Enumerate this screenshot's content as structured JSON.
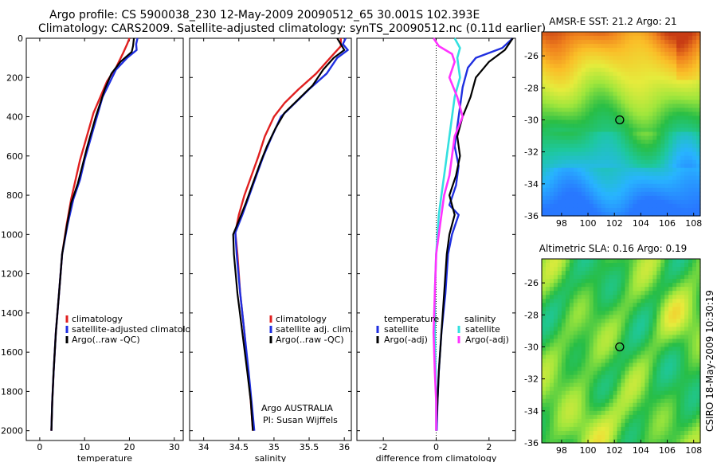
{
  "header": {
    "line1": "Argo profile: CS 5900038_230 12-May-2009 20090512_65 30.001S 102.393E",
    "line2": "Climatology: CARS2009. Satellite-adjusted climatology: synTS_20090512.nc (0.11d earlier)"
  },
  "footer": {
    "side_label": "CSIRO 18-May-2009 10:30:19",
    "argo_label_1": "Argo AUSTRALIA",
    "argo_label_2": "PI: Susan Wijffels"
  },
  "colors": {
    "climatology": "#e02020",
    "satellite": "#1f2fe0",
    "argo": "#000000",
    "sal_satellite": "#33e0e0",
    "sal_argo": "#ff33ff"
  },
  "chart_data": [
    {
      "type": "line",
      "id": "temperature",
      "xlabel": "temperature",
      "xlim": [
        -3,
        32
      ],
      "ylim": [
        2050,
        0
      ],
      "xticks": [
        0,
        10,
        20,
        30
      ],
      "yticks": [
        0,
        200,
        400,
        600,
        800,
        1000,
        1200,
        1400,
        1600,
        1800,
        2000
      ],
      "legend": [
        "climatology",
        "satellite-adjusted climatolo",
        "Argo(..raw -QC)"
      ],
      "series": [
        {
          "name": "climatology",
          "color_key": "climatology",
          "points": [
            [
              20,
              0
            ],
            [
              19.5,
              30
            ],
            [
              18.5,
              80
            ],
            [
              17,
              150
            ],
            [
              15,
              220
            ],
            [
              13.5,
              300
            ],
            [
              12,
              380
            ],
            [
              11,
              460
            ],
            [
              10,
              540
            ],
            [
              9,
              620
            ],
            [
              8,
              720
            ],
            [
              7,
              820
            ],
            [
              6,
              950
            ],
            [
              5,
              1100
            ],
            [
              4.3,
              1300
            ],
            [
              3.6,
              1500
            ],
            [
              3.1,
              1700
            ],
            [
              2.8,
              1850
            ],
            [
              2.6,
              2000
            ]
          ]
        },
        {
          "name": "satellite-adjusted climatolo",
          "color_key": "satellite",
          "points": [
            [
              21.8,
              0
            ],
            [
              21.5,
              30
            ],
            [
              21.6,
              60
            ],
            [
              19.5,
              100
            ],
            [
              17,
              160
            ],
            [
              15.5,
              230
            ],
            [
              14,
              300
            ],
            [
              13,
              380
            ],
            [
              12,
              460
            ],
            [
              11,
              540
            ],
            [
              10,
              620
            ],
            [
              9,
              720
            ],
            [
              7.5,
              820
            ],
            [
              6.2,
              950
            ],
            [
              5,
              1100
            ],
            [
              4.3,
              1300
            ],
            [
              3.6,
              1500
            ],
            [
              3.1,
              1700
            ],
            [
              2.8,
              1850
            ],
            [
              2.6,
              2000
            ]
          ]
        },
        {
          "name": "Argo(..raw -QC)",
          "color_key": "argo",
          "points": [
            [
              21,
              0
            ],
            [
              20.8,
              40
            ],
            [
              20.5,
              70
            ],
            [
              18,
              120
            ],
            [
              16,
              180
            ],
            [
              14.5,
              260
            ],
            [
              13.5,
              330
            ],
            [
              12.5,
              400
            ],
            [
              11.5,
              480
            ],
            [
              10.5,
              560
            ],
            [
              9.5,
              650
            ],
            [
              8.5,
              740
            ],
            [
              7,
              840
            ],
            [
              6,
              960
            ],
            [
              5,
              1100
            ],
            [
              4.3,
              1300
            ],
            [
              3.6,
              1500
            ],
            [
              3.1,
              1700
            ],
            [
              2.8,
              1850
            ],
            [
              2.6,
              2000
            ]
          ]
        }
      ]
    },
    {
      "type": "line",
      "id": "salinity",
      "xlabel": "salinity",
      "xlim": [
        33.8,
        36.1
      ],
      "ylim": [
        2050,
        0
      ],
      "xticks": [
        34,
        34.5,
        35,
        35.5,
        36
      ],
      "legend": [
        "climatology",
        "satellite adj. clim.",
        "Argo(..raw -QC)"
      ],
      "series": [
        {
          "name": "climatology",
          "color_key": "climatology",
          "points": [
            [
              35.95,
              0
            ],
            [
              35.95,
              40
            ],
            [
              35.8,
              100
            ],
            [
              35.6,
              180
            ],
            [
              35.35,
              260
            ],
            [
              35.15,
              330
            ],
            [
              35.0,
              400
            ],
            [
              34.87,
              500
            ],
            [
              34.78,
              600
            ],
            [
              34.68,
              700
            ],
            [
              34.58,
              800
            ],
            [
              34.5,
              900
            ],
            [
              34.45,
              990
            ],
            [
              34.48,
              1100
            ],
            [
              34.52,
              1300
            ],
            [
              34.58,
              1500
            ],
            [
              34.63,
              1700
            ],
            [
              34.67,
              1850
            ],
            [
              34.7,
              2000
            ]
          ]
        },
        {
          "name": "satellite adj. clim.",
          "color_key": "satellite",
          "points": [
            [
              36.02,
              0
            ],
            [
              35.98,
              30
            ],
            [
              36.05,
              60
            ],
            [
              35.9,
              100
            ],
            [
              35.75,
              180
            ],
            [
              35.5,
              260
            ],
            [
              35.3,
              330
            ],
            [
              35.1,
              400
            ],
            [
              34.97,
              500
            ],
            [
              34.85,
              600
            ],
            [
              34.75,
              700
            ],
            [
              34.65,
              800
            ],
            [
              34.55,
              900
            ],
            [
              34.45,
              990
            ],
            [
              34.47,
              1100
            ],
            [
              34.52,
              1300
            ],
            [
              34.58,
              1500
            ],
            [
              34.64,
              1700
            ],
            [
              34.68,
              1850
            ],
            [
              34.72,
              2000
            ]
          ]
        },
        {
          "name": "Argo(..raw -QC)",
          "color_key": "argo",
          "points": [
            [
              35.9,
              0
            ],
            [
              35.95,
              30
            ],
            [
              36.0,
              60
            ],
            [
              35.85,
              100
            ],
            [
              35.7,
              160
            ],
            [
              35.55,
              240
            ],
            [
              35.35,
              310
            ],
            [
              35.15,
              380
            ],
            [
              35.02,
              460
            ],
            [
              34.9,
              550
            ],
            [
              34.8,
              640
            ],
            [
              34.7,
              740
            ],
            [
              34.6,
              840
            ],
            [
              34.5,
              930
            ],
            [
              34.42,
              1000
            ],
            [
              34.43,
              1100
            ],
            [
              34.48,
              1300
            ],
            [
              34.55,
              1500
            ],
            [
              34.62,
              1700
            ],
            [
              34.67,
              1850
            ],
            [
              34.7,
              2000
            ]
          ]
        }
      ]
    },
    {
      "type": "line",
      "id": "difference",
      "xlabel": "difference from climatology",
      "xlim": [
        -3,
        3
      ],
      "ylim": [
        2050,
        0
      ],
      "xticks": [
        -2,
        0,
        2
      ],
      "legend_titles": [
        "temperature",
        "salinity"
      ],
      "legend": [
        "satellite",
        "Argo(-adj)",
        "satellite",
        "Argo(-adj)"
      ],
      "series": [
        {
          "name": "satellite",
          "group": "temperature",
          "color_key": "satellite",
          "points": [
            [
              2.9,
              0
            ],
            [
              2.5,
              50
            ],
            [
              1.5,
              100
            ],
            [
              1.2,
              150
            ],
            [
              1.0,
              250
            ],
            [
              0.9,
              350
            ],
            [
              0.8,
              450
            ],
            [
              0.7,
              550
            ],
            [
              0.85,
              650
            ],
            [
              0.75,
              750
            ],
            [
              0.5,
              850
            ],
            [
              0.85,
              900
            ],
            [
              0.6,
              1000
            ],
            [
              0.45,
              1100
            ],
            [
              0.35,
              1300
            ],
            [
              0.2,
              1500
            ],
            [
              0.1,
              1700
            ],
            [
              0.05,
              1850
            ],
            [
              0.02,
              2000
            ]
          ]
        },
        {
          "name": "Argo(-adj)",
          "group": "temperature",
          "color_key": "argo",
          "points": [
            [
              2.9,
              0
            ],
            [
              2.6,
              60
            ],
            [
              2.0,
              120
            ],
            [
              1.5,
              200
            ],
            [
              1.3,
              300
            ],
            [
              1.0,
              400
            ],
            [
              0.8,
              500
            ],
            [
              0.9,
              600
            ],
            [
              0.75,
              700
            ],
            [
              0.5,
              800
            ],
            [
              0.7,
              900
            ],
            [
              0.5,
              1000
            ],
            [
              0.4,
              1100
            ],
            [
              0.3,
              1300
            ],
            [
              0.2,
              1500
            ],
            [
              0.1,
              1700
            ],
            [
              0.05,
              1850
            ],
            [
              0.0,
              2000
            ]
          ]
        },
        {
          "name": "satellite",
          "group": "salinity",
          "color_key": "sal_satellite",
          "points": [
            [
              0.7,
              0
            ],
            [
              0.9,
              50
            ],
            [
              0.8,
              100
            ],
            [
              0.9,
              200
            ],
            [
              0.7,
              300
            ],
            [
              0.6,
              400
            ],
            [
              0.5,
              500
            ],
            [
              0.4,
              600
            ],
            [
              0.3,
              700
            ],
            [
              0.2,
              800
            ],
            [
              0.1,
              900
            ],
            [
              0.05,
              1000
            ],
            [
              0.0,
              1100
            ],
            [
              -0.05,
              1300
            ],
            [
              -0.05,
              1500
            ],
            [
              -0.02,
              1700
            ],
            [
              0.0,
              1850
            ],
            [
              0.0,
              2000
            ]
          ]
        },
        {
          "name": "Argo(-adj)",
          "group": "salinity",
          "color_key": "sal_argo",
          "points": [
            [
              -0.1,
              0
            ],
            [
              0.1,
              40
            ],
            [
              0.6,
              80
            ],
            [
              0.7,
              120
            ],
            [
              0.5,
              200
            ],
            [
              0.8,
              300
            ],
            [
              1.0,
              400
            ],
            [
              0.7,
              500
            ],
            [
              0.6,
              600
            ],
            [
              0.5,
              700
            ],
            [
              0.3,
              800
            ],
            [
              0.2,
              900
            ],
            [
              0.1,
              1000
            ],
            [
              0.0,
              1100
            ],
            [
              -0.05,
              1300
            ],
            [
              -0.1,
              1500
            ],
            [
              -0.05,
              1700
            ],
            [
              0.0,
              1850
            ],
            [
              0.0,
              2000
            ]
          ]
        }
      ]
    },
    {
      "type": "heatmap",
      "id": "sst_map",
      "title": "AMSR-E SST: 21.2 Argo: 21",
      "xlim": [
        96.5,
        108.5
      ],
      "ylim": [
        -36,
        -24.5
      ],
      "xticks": [
        98,
        100,
        102,
        104,
        106,
        108
      ],
      "yticks": [
        -26,
        -28,
        -30,
        -32,
        -34,
        -36
      ],
      "marker": {
        "lon": 102.4,
        "lat": -30.0
      }
    },
    {
      "type": "heatmap",
      "id": "sla_map",
      "title": "Altimetric SLA: 0.16 Argo: 0.19",
      "xlim": [
        96.5,
        108.5
      ],
      "ylim": [
        -36,
        -24.5
      ],
      "xticks": [
        98,
        100,
        102,
        104,
        106,
        108
      ],
      "yticks": [
        -26,
        -28,
        -30,
        -32,
        -34,
        -36
      ],
      "marker": {
        "lon": 102.4,
        "lat": -30.0
      }
    }
  ]
}
